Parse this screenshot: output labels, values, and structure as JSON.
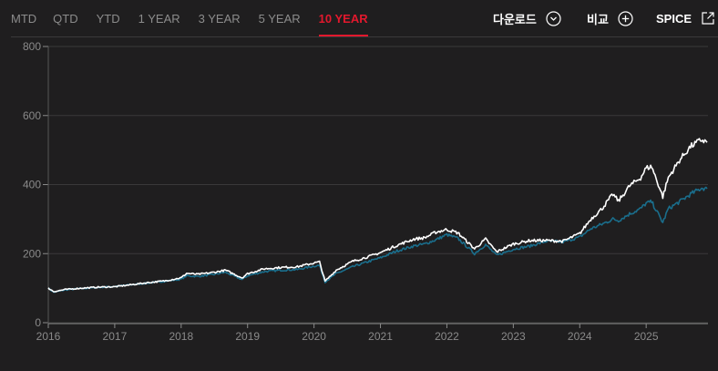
{
  "tabs": [
    {
      "label": "MTD"
    },
    {
      "label": "QTD"
    },
    {
      "label": "YTD"
    },
    {
      "label": "1 YEAR"
    },
    {
      "label": "3 YEAR"
    },
    {
      "label": "5 YEAR"
    },
    {
      "label": "10 YEAR",
      "active": true
    }
  ],
  "actions": {
    "download": {
      "label": "다운로드",
      "icon": "chevron-down-circle-icon"
    },
    "compare": {
      "label": "비교",
      "icon": "plus-circle-icon"
    },
    "spice": {
      "label": "SPICE",
      "icon": "external-link-icon"
    }
  },
  "colors": {
    "background": "#1f1e1f",
    "active_tab": "#e3182d",
    "series_primary": "#ffffff",
    "series_secondary": "#1a6e8c"
  },
  "chart_data": {
    "type": "line",
    "title": "",
    "xlabel": "",
    "ylabel": "",
    "ylim": [
      0,
      800
    ],
    "yticks": [
      "0",
      "200",
      "400",
      "600",
      "800"
    ],
    "xticks": [
      "2016",
      "2017",
      "2018",
      "2019",
      "2020",
      "2021",
      "2022",
      "2023",
      "2024",
      "2025"
    ],
    "x_start": "2016",
    "x_end": "2025-12",
    "grid": "horizontal",
    "series": [
      {
        "color": "#ffffff",
        "points": [
          [
            "2016-01",
            100
          ],
          [
            "2016-02",
            90
          ],
          [
            "2016-04",
            96
          ],
          [
            "2016-07",
            100
          ],
          [
            "2016-10",
            103
          ],
          [
            "2017-01",
            104
          ],
          [
            "2017-04",
            110
          ],
          [
            "2017-07",
            116
          ],
          [
            "2017-10",
            121
          ],
          [
            "2018-01",
            130
          ],
          [
            "2018-02",
            143
          ],
          [
            "2018-04",
            140
          ],
          [
            "2018-07",
            146
          ],
          [
            "2018-09",
            152
          ],
          [
            "2018-12",
            130
          ],
          [
            "2019-01",
            142
          ],
          [
            "2019-04",
            156
          ],
          [
            "2019-07",
            160
          ],
          [
            "2019-10",
            162
          ],
          [
            "2020-01",
            173
          ],
          [
            "2020-02",
            176
          ],
          [
            "2020-03",
            120
          ],
          [
            "2020-05",
            152
          ],
          [
            "2020-08",
            178
          ],
          [
            "2020-11",
            192
          ],
          [
            "2021-01",
            203
          ],
          [
            "2021-04",
            224
          ],
          [
            "2021-07",
            242
          ],
          [
            "2021-09",
            246
          ],
          [
            "2021-11",
            262
          ],
          [
            "2022-01",
            270
          ],
          [
            "2022-03",
            260
          ],
          [
            "2022-06",
            214
          ],
          [
            "2022-08",
            242
          ],
          [
            "2022-10",
            205
          ],
          [
            "2023-01",
            228
          ],
          [
            "2023-04",
            238
          ],
          [
            "2023-07",
            238
          ],
          [
            "2023-10",
            236
          ],
          [
            "2024-01",
            258
          ],
          [
            "2024-03",
            300
          ],
          [
            "2024-05",
            330
          ],
          [
            "2024-07",
            372
          ],
          [
            "2024-08",
            352
          ],
          [
            "2024-10",
            396
          ],
          [
            "2024-12",
            420
          ],
          [
            "2025-01",
            448
          ],
          [
            "2025-02",
            452
          ],
          [
            "2025-04",
            365
          ],
          [
            "2025-05",
            420
          ],
          [
            "2025-07",
            470
          ],
          [
            "2025-09",
            510
          ],
          [
            "2025-11",
            530
          ],
          [
            "2025-12",
            522
          ]
        ]
      },
      {
        "color": "#1a6e8c",
        "points": [
          [
            "2016-01",
            100
          ],
          [
            "2016-02",
            88
          ],
          [
            "2016-04",
            95
          ],
          [
            "2016-07",
            99
          ],
          [
            "2016-10",
            102
          ],
          [
            "2017-01",
            105
          ],
          [
            "2017-04",
            110
          ],
          [
            "2017-07",
            115
          ],
          [
            "2017-10",
            120
          ],
          [
            "2018-01",
            126
          ],
          [
            "2018-02",
            136
          ],
          [
            "2018-04",
            134
          ],
          [
            "2018-07",
            140
          ],
          [
            "2018-09",
            146
          ],
          [
            "2018-12",
            125
          ],
          [
            "2019-01",
            136
          ],
          [
            "2019-04",
            148
          ],
          [
            "2019-07",
            152
          ],
          [
            "2019-10",
            154
          ],
          [
            "2020-01",
            164
          ],
          [
            "2020-02",
            166
          ],
          [
            "2020-03",
            118
          ],
          [
            "2020-05",
            142
          ],
          [
            "2020-08",
            162
          ],
          [
            "2020-11",
            178
          ],
          [
            "2021-01",
            188
          ],
          [
            "2021-04",
            208
          ],
          [
            "2021-07",
            222
          ],
          [
            "2021-09",
            228
          ],
          [
            "2021-11",
            240
          ],
          [
            "2022-01",
            255
          ],
          [
            "2022-03",
            244
          ],
          [
            "2022-06",
            200
          ],
          [
            "2022-08",
            226
          ],
          [
            "2022-10",
            195
          ],
          [
            "2023-01",
            213
          ],
          [
            "2023-04",
            222
          ],
          [
            "2023-07",
            236
          ],
          [
            "2023-10",
            234
          ],
          [
            "2024-01",
            248
          ],
          [
            "2024-03",
            272
          ],
          [
            "2024-05",
            285
          ],
          [
            "2024-07",
            300
          ],
          [
            "2024-08",
            296
          ],
          [
            "2024-10",
            315
          ],
          [
            "2024-12",
            330
          ],
          [
            "2025-01",
            346
          ],
          [
            "2025-02",
            350
          ],
          [
            "2025-04",
            290
          ],
          [
            "2025-05",
            330
          ],
          [
            "2025-07",
            350
          ],
          [
            "2025-09",
            372
          ],
          [
            "2025-11",
            390
          ],
          [
            "2025-12",
            388
          ]
        ]
      }
    ]
  }
}
